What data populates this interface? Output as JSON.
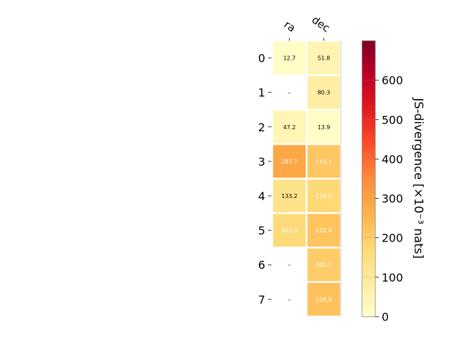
{
  "chart_data": {
    "type": "heatmap",
    "columns": [
      "ra",
      "dec"
    ],
    "rows": [
      "0",
      "1",
      "2",
      "3",
      "4",
      "5",
      "6",
      "7"
    ],
    "values": [
      [
        12.7,
        51.8
      ],
      [
        null,
        80.3
      ],
      [
        47.2,
        13.9
      ],
      [
        287.7,
        215.1
      ],
      [
        133.2,
        175.0
      ],
      [
        167.3,
        222.4
      ],
      [
        null,
        201.7
      ],
      [
        null,
        228.9
      ]
    ],
    "cell_labels": [
      [
        "12.7",
        "51.8"
      ],
      [
        "–",
        "80.3"
      ],
      [
        "47.2",
        "13.9"
      ],
      [
        "287.7",
        "215.1"
      ],
      [
        "133.2",
        "175.0"
      ],
      [
        "167.3",
        "222.4"
      ],
      [
        "–",
        "201.7"
      ],
      [
        "–",
        "228.9"
      ]
    ],
    "colorbar": {
      "label": "JS-divergence [×10⁻³ nats]",
      "range": [
        0,
        700
      ],
      "ticks": [
        0,
        100,
        200,
        300,
        400,
        500,
        600
      ],
      "colormap": "YlOrRd",
      "stops": [
        "#ffffcc",
        "#ffeda0",
        "#fed976",
        "#feb24c",
        "#fd8d3c",
        "#fc4e2a",
        "#e31a1c",
        "#bd0026",
        "#800026"
      ]
    }
  }
}
